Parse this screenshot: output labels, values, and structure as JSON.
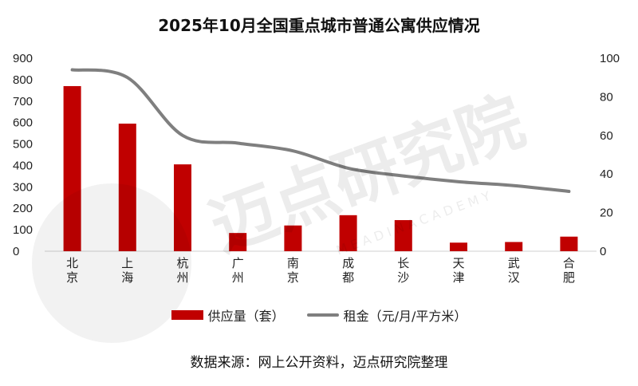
{
  "chart_data": {
    "type": "bar",
    "title": "2025年10月全国重点城市普通公寓供应情况",
    "categories": [
      "北京",
      "上海",
      "杭州",
      "广州",
      "南京",
      "成都",
      "长沙",
      "天津",
      "武汉",
      "合肥"
    ],
    "series": [
      {
        "name": "供应量（套）",
        "type": "bar",
        "axis": "left",
        "color": "#c00000",
        "values": [
          770,
          595,
          405,
          85,
          120,
          168,
          145,
          40,
          43,
          68
        ]
      },
      {
        "name": "租金（元/月/平方米）",
        "type": "line",
        "axis": "right",
        "color": "#7f7f7f",
        "values": [
          94,
          90,
          60,
          56,
          52,
          43,
          39,
          36,
          34,
          31
        ]
      }
    ],
    "y_left": {
      "min": 0,
      "max": 900,
      "step": 100
    },
    "y_right": {
      "min": 0,
      "max": 100,
      "step": 20
    },
    "legend_position": "bottom",
    "grid": false
  },
  "legend": {
    "bar_label": "供应量（套）",
    "line_label": "租金（元/月/平方米）"
  },
  "source": "数据来源：网上公开资料，迈点研究院整理",
  "watermark": {
    "main": "迈点研究院",
    "sub": "M E A D I N   A C A D E M Y"
  }
}
